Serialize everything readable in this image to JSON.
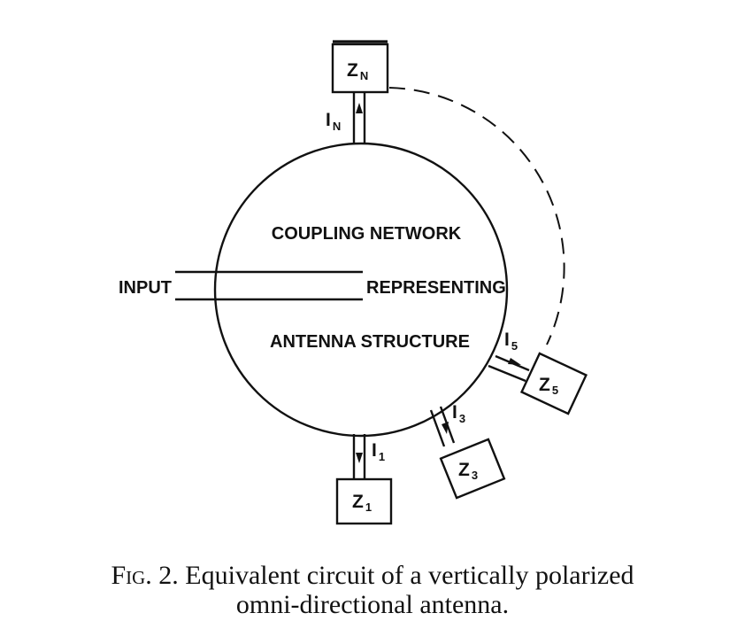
{
  "diagram": {
    "network_label_lines": [
      "COUPLING NETWORK",
      "REPRESENTING",
      "ANTENNA STRUCTURE"
    ],
    "input_label": "INPUT",
    "loads": [
      {
        "id": "N",
        "impedance": "Z",
        "impedance_sub": "N",
        "current": "I",
        "current_sub": "N"
      },
      {
        "id": "5",
        "impedance": "Z",
        "impedance_sub": "5",
        "current": "I",
        "current_sub": "5"
      },
      {
        "id": "3",
        "impedance": "Z",
        "impedance_sub": "3",
        "current": "I",
        "current_sub": "3"
      },
      {
        "id": "1",
        "impedance": "Z",
        "impedance_sub": "1",
        "current": "I",
        "current_sub": "1"
      }
    ]
  },
  "caption": {
    "prefix": "Fig.",
    "line1": "2. Equivalent circuit of a vertically polarized",
    "line2": "omni-directional antenna."
  }
}
